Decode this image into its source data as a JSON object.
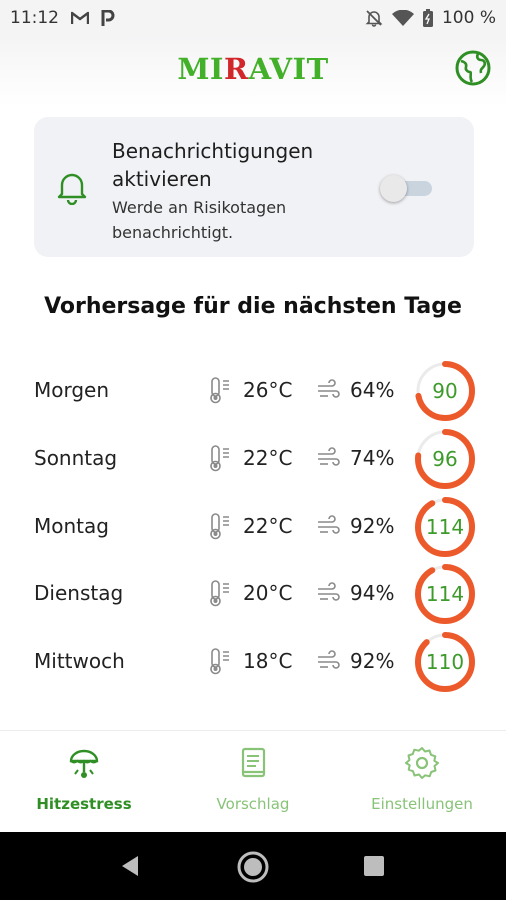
{
  "status_bar": {
    "time": "11:12",
    "battery": "100 %",
    "left_icons": [
      "gmail-icon",
      "parking-app-icon"
    ],
    "right_icons": [
      "bell-off-icon",
      "wifi-icon",
      "battery-icon"
    ]
  },
  "header": {
    "logo_part1": "MI",
    "logo_part2": "R",
    "logo_part3": "AVIT",
    "logo_colors": {
      "main": "#43b02a",
      "accent": "#d1272b"
    },
    "globe_icon": "globe-icon"
  },
  "notification_card": {
    "title": "Benachrichtigungen aktivieren",
    "subtitle": "Werde an Risikotagen benachrichtigt.",
    "toggle_on": false,
    "icon": "bell-icon"
  },
  "forecast": {
    "title": "Vorhersage für die nächsten Tage",
    "gauge_color": "#ec5a2b",
    "gauge_track": "#ebebeb",
    "days": [
      {
        "day": "Morgen",
        "temp": "26°C",
        "humidity": "64%",
        "index": "90",
        "level": 0.72
      },
      {
        "day": "Sonntag",
        "temp": "22°C",
        "humidity": "74%",
        "index": "96",
        "level": 0.77
      },
      {
        "day": "Montag",
        "temp": "22°C",
        "humidity": "92%",
        "index": "114",
        "level": 0.92
      },
      {
        "day": "Dienstag",
        "temp": "20°C",
        "humidity": "94%",
        "index": "114",
        "level": 0.92
      },
      {
        "day": "Mittwoch",
        "temp": "18°C",
        "humidity": "92%",
        "index": "110",
        "level": 0.88
      }
    ]
  },
  "bottom_nav": {
    "items": [
      {
        "label": "Hitzestress",
        "icon": "heat-stress-icon",
        "active": true
      },
      {
        "label": "Vorschlag",
        "icon": "book-icon",
        "active": false
      },
      {
        "label": "Einstellungen",
        "icon": "gear-icon",
        "active": false
      }
    ],
    "active_color": "#2f8f25",
    "inactive_color": "#88c378"
  },
  "system_nav": {
    "buttons": [
      "back-icon",
      "home-icon",
      "recents-icon"
    ]
  }
}
